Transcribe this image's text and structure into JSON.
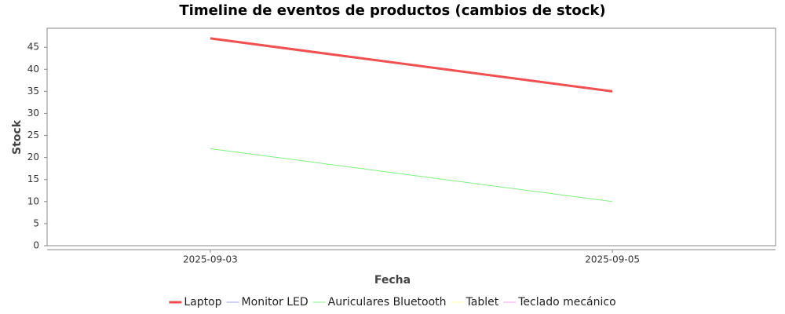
{
  "chart_data": {
    "type": "line",
    "title": "Timeline de eventos de productos (cambios de stock)",
    "x_label": "Fecha",
    "y_label": "Stock",
    "categories": [
      "2025-09-03",
      "2025-09-05"
    ],
    "series": [
      {
        "name": "Laptop",
        "color": "#f05050",
        "line_width": 3,
        "values": [
          47,
          35
        ]
      },
      {
        "name": "Monitor LED",
        "color": "#a0a0e0",
        "line_width": 1,
        "values": [
          null,
          null
        ]
      },
      {
        "name": "Auriculares Bluetooth",
        "color": "#80f080",
        "line_width": 1,
        "values": [
          22,
          10
        ]
      },
      {
        "name": "Tablet",
        "color": "#ffffa0",
        "line_width": 1,
        "values": [
          null,
          null
        ]
      },
      {
        "name": "Teclado mecánico",
        "color": "#f0a0f0",
        "line_width": 1,
        "values": [
          null,
          null
        ]
      }
    ],
    "ylim": [
      0,
      49.3
    ],
    "yticks": [
      0,
      5,
      10,
      15,
      20,
      25,
      30,
      35,
      40,
      45
    ],
    "grid": false,
    "legend": "bottom"
  }
}
